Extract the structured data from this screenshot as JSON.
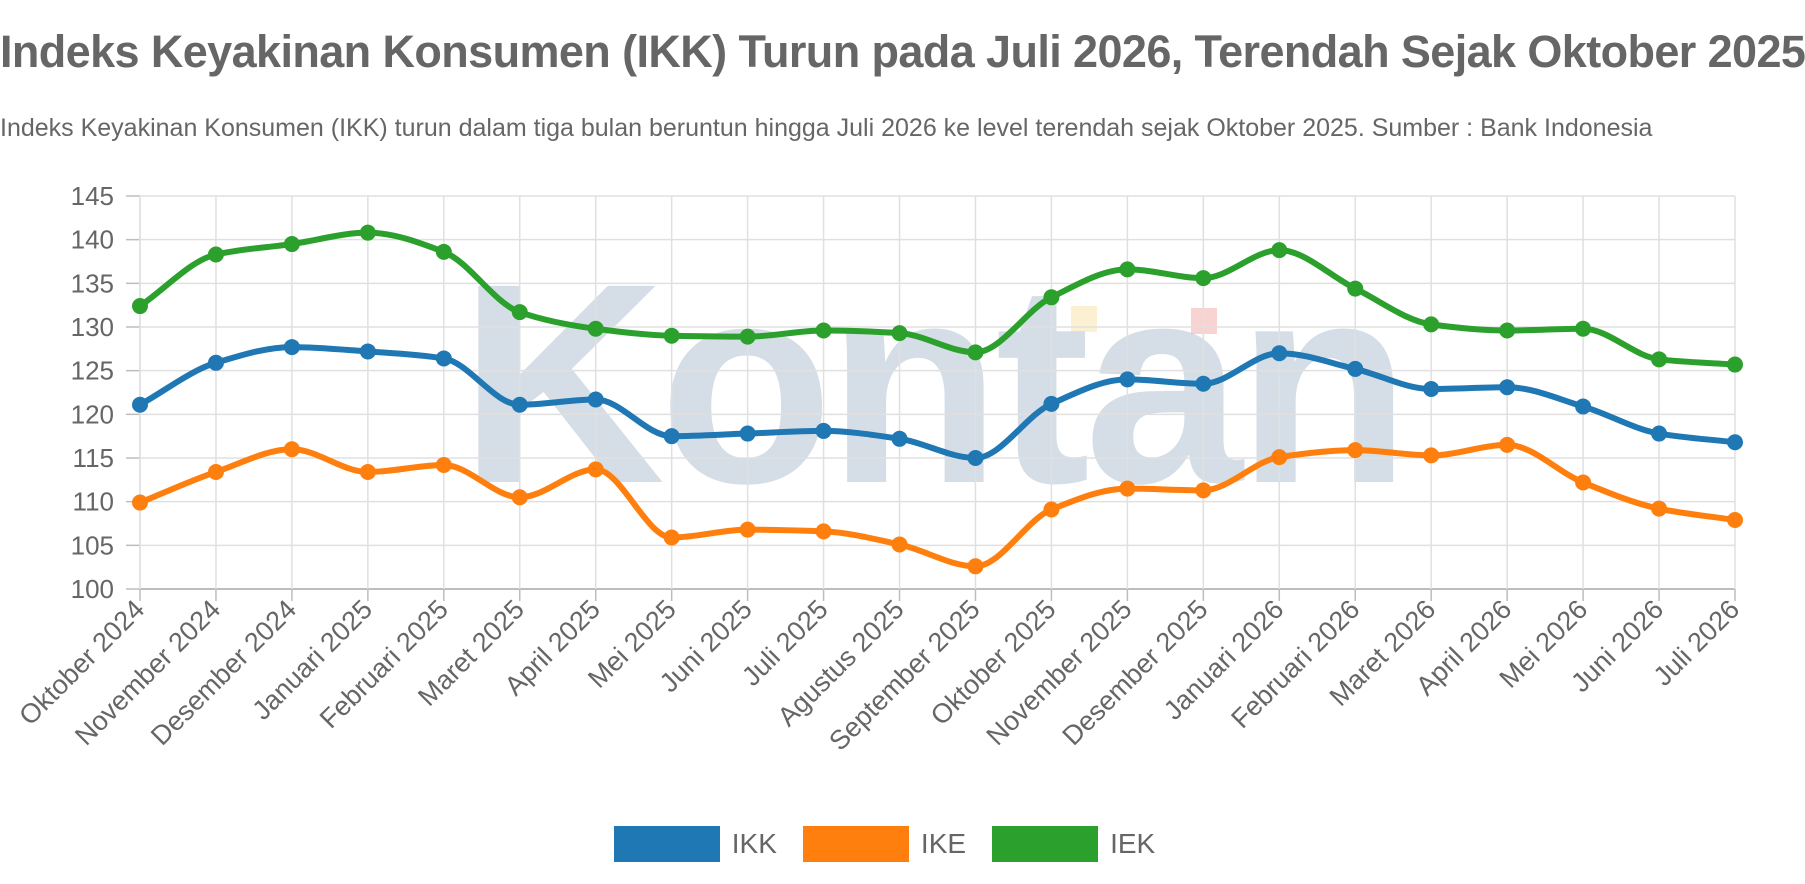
{
  "header": {
    "title": "Indeks Keyakinan Konsumen (IKK) Turun pada Juli 2026, Terendah Sejak Oktober 2025",
    "subtitle": "Indeks Keyakinan Konsumen (IKK) turun dalam tiga bulan beruntun hingga Juli 2026 ke level terendah sejak Oktober 2025. Sumber : Bank Indonesia"
  },
  "watermark": {
    "text": "Kontan"
  },
  "chart_data": {
    "type": "line",
    "title": "Indeks Keyakinan Konsumen (IKK) Turun pada Juli 2026, Terendah Sejak Oktober 2025",
    "subtitle": "Indeks Keyakinan Konsumen (IKK) turun dalam tiga bulan beruntun hingga Juli 2026 ke level terendah sejak Oktober 2025. Sumber : Bank Indonesia",
    "xlabel": "",
    "ylabel": "",
    "ylim": [
      100,
      145
    ],
    "yticks": [
      100,
      105,
      110,
      115,
      120,
      125,
      130,
      135,
      140,
      145
    ],
    "grid": true,
    "smooth": true,
    "legend_position": "bottom",
    "categories": [
      "Oktober 2024",
      "November 2024",
      "Desember 2024",
      "Januari 2025",
      "Februari 2025",
      "Maret 2025",
      "April 2025",
      "Mei 2025",
      "Juni 2025",
      "Juli 2025",
      "Agustus 2025",
      "September 2025",
      "Oktober 2025",
      "November 2025",
      "Desember 2025",
      "Januari 2026",
      "Februari 2026",
      "Maret 2026",
      "April 2026",
      "Mei 2026",
      "Juni 2026",
      "Juli 2026"
    ],
    "series": [
      {
        "name": "IKK",
        "color": "#1f77b4",
        "values": [
          121.1,
          125.9,
          127.7,
          127.2,
          126.4,
          121.1,
          121.7,
          117.5,
          117.8,
          118.1,
          117.2,
          115.0,
          121.2,
          124.0,
          123.5,
          127.0,
          125.2,
          122.9,
          123.1,
          120.9,
          117.8,
          116.8
        ]
      },
      {
        "name": "IKE",
        "color": "#ff7f0e",
        "values": [
          109.9,
          113.4,
          116.0,
          113.4,
          114.2,
          110.5,
          113.7,
          105.9,
          106.8,
          106.6,
          105.1,
          102.6,
          109.1,
          111.5,
          111.3,
          115.1,
          115.9,
          115.3,
          116.5,
          112.2,
          109.2,
          107.9
        ]
      },
      {
        "name": "IEK",
        "color": "#2ca02c",
        "values": [
          132.4,
          138.3,
          139.5,
          140.8,
          138.6,
          131.7,
          129.8,
          129.0,
          128.9,
          129.6,
          129.3,
          127.1,
          133.4,
          136.6,
          135.6,
          138.8,
          134.4,
          130.3,
          129.6,
          129.8,
          126.3,
          125.7
        ]
      }
    ]
  }
}
